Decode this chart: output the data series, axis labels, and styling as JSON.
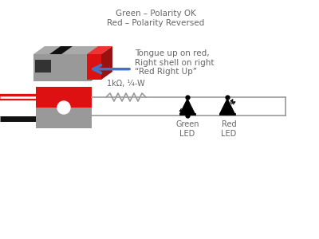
{
  "bg_color": "#ffffff",
  "text_color": "#666666",
  "legend_text": "Green – Polarity OK\nRed – Polarity Reversed",
  "resistor_label": "1kΩ, ¼-W",
  "green_led_label": "Green\nLED",
  "red_led_label": "Red\nLED",
  "bottom_label": "Tongue up on red,\nRight shell on right\n“Red Right Up”",
  "connector_red": "#dd1111",
  "connector_gray": "#999999",
  "connector_dark_gray": "#777777",
  "connector_black": "#111111",
  "wire_color": "#999999",
  "circuit_color": "#999999",
  "arrow_color": "#4472c4",
  "white": "#ffffff",
  "dark_red": "#991111"
}
